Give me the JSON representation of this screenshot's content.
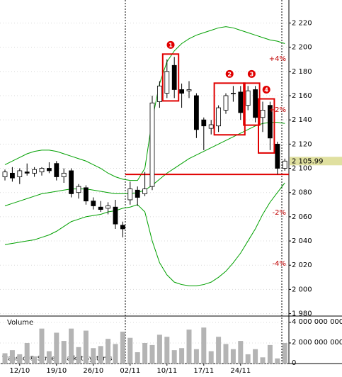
{
  "chart_data": {
    "type": "candlestick",
    "categories": [
      null,
      null,
      "12/10",
      null,
      null,
      null,
      null,
      "19/10",
      null,
      null,
      null,
      null,
      "26/10",
      null,
      null,
      null,
      null,
      "02/11",
      null,
      null,
      null,
      null,
      "10/11",
      null,
      null,
      null,
      null,
      "17/11",
      null,
      null,
      null,
      null,
      "24/11",
      null,
      null,
      null,
      null,
      null,
      null
    ],
    "open": [
      2093,
      2096,
      2093,
      2097,
      2096,
      2097,
      2100,
      2104,
      2093,
      2098,
      2080,
      2084,
      2073,
      2068,
      2067,
      2068,
      2053,
      2074,
      2082,
      2079,
      2085,
      2155,
      2162,
      2185,
      2165,
      2164,
      2160,
      2140,
      2133,
      2135,
      2148,
      2162,
      2163,
      2152,
      2165,
      2142,
      2152,
      2120,
      2100
    ],
    "high": [
      2099,
      2101,
      2100,
      2104,
      2101,
      2101,
      2105,
      2106,
      2100,
      2100,
      2087,
      2086,
      2076,
      2073,
      2072,
      2074,
      2056,
      2089,
      2085,
      2097,
      2160,
      2172,
      2190,
      2192,
      2170,
      2172,
      2162,
      2142,
      2140,
      2152,
      2162,
      2168,
      2168,
      2168,
      2168,
      2155,
      2155,
      2122,
      2108
    ],
    "low": [
      2090,
      2089,
      2087,
      2094,
      2093,
      2094,
      2096,
      2090,
      2088,
      2076,
      2075,
      2070,
      2066,
      2064,
      2062,
      2050,
      2043,
      2070,
      2069,
      2077,
      2082,
      2150,
      2158,
      2158,
      2150,
      2158,
      2125,
      2115,
      2128,
      2130,
      2145,
      2155,
      2140,
      2148,
      2138,
      2130,
      2115,
      2095,
      2098
    ],
    "close": [
      2097,
      2092,
      2098,
      2096,
      2099,
      2100,
      2098,
      2093,
      2096,
      2079,
      2085,
      2073,
      2069,
      2066,
      2069,
      2054,
      2050,
      2083,
      2076,
      2083,
      2154,
      2168,
      2180,
      2165,
      2162,
      2165,
      2132,
      2135,
      2136,
      2150,
      2160,
      2162,
      2146,
      2164,
      2142,
      2148,
      2125,
      2100,
      2105.99
    ],
    "up_color": "#ffffff",
    "down_color": "#000000",
    "bands": {
      "color": "#00a000",
      "upper": [
        2103,
        2106,
        2109,
        2112,
        2114,
        2115,
        2115,
        2114,
        2112,
        2110,
        2108,
        2106,
        2103,
        2100,
        2096,
        2093,
        2091,
        2090,
        2090,
        2100,
        2140,
        2170,
        2188,
        2197,
        2203,
        2207,
        2210,
        2212,
        2214,
        2216,
        2217,
        2216,
        2214,
        2212,
        2210,
        2208,
        2206,
        2205,
        2203
      ],
      "middle": [
        2069,
        2071,
        2073,
        2075,
        2077,
        2079,
        2080,
        2081,
        2082,
        2083,
        2083,
        2083,
        2082,
        2081,
        2080,
        2079,
        2079,
        2079,
        2080,
        2082,
        2086,
        2091,
        2096,
        2100,
        2104,
        2108,
        2111,
        2114,
        2117,
        2120,
        2123,
        2126,
        2129,
        2132,
        2135,
        2137,
        2138,
        2138,
        2137
      ],
      "lower": [
        2037,
        2038,
        2039,
        2040,
        2041,
        2043,
        2045,
        2048,
        2052,
        2056,
        2058,
        2060,
        2061,
        2062,
        2064,
        2065,
        2067,
        2068,
        2070,
        2064,
        2040,
        2022,
        2012,
        2006,
        2004,
        2003,
        2003,
        2004,
        2006,
        2010,
        2015,
        2022,
        2030,
        2040,
        2050,
        2062,
        2072,
        2080,
        2088
      ]
    },
    "support_line": 2095,
    "support_color": "#e00000",
    "last_price": {
      "value": 2105.99,
      "label": "2 105.99"
    },
    "ylim": [
      1978,
      2239
    ],
    "yticks": [
      {
        "value": 1980,
        "label": "1 980"
      },
      {
        "value": 2000,
        "label": "2 000"
      },
      {
        "value": 2020,
        "label": "2 020"
      },
      {
        "value": 2040,
        "label": "2 040"
      },
      {
        "value": 2060,
        "label": "2 060"
      },
      {
        "value": 2080,
        "label": "2 080"
      },
      {
        "value": 2100,
        "label": "2 100"
      },
      {
        "value": 2120,
        "label": "2 120"
      },
      {
        "value": 2140,
        "label": "2 140"
      },
      {
        "value": 2160,
        "label": "2 160"
      },
      {
        "value": 2180,
        "label": "2 180"
      },
      {
        "value": 2200,
        "label": "2 200"
      },
      {
        "value": 2220,
        "label": "2 220"
      }
    ],
    "grid": true,
    "band_labels": [
      "+4%",
      "+2%",
      "-2%",
      "-4%"
    ],
    "pattern_labels": [
      "1",
      "2",
      "3",
      "4"
    ],
    "volume": {
      "title": "Volume",
      "color": "#b4b4b4",
      "values": [
        1000000000,
        1300000000,
        900000000,
        2000000000,
        700000000,
        3400000000,
        1200000000,
        3000000000,
        2200000000,
        3400000000,
        1600000000,
        3200000000,
        1500000000,
        1700000000,
        2400000000,
        1900000000,
        3100000000,
        2500000000,
        1100000000,
        2000000000,
        1800000000,
        2800000000,
        2600000000,
        1300000000,
        1500000000,
        3300000000,
        1400000000,
        3500000000,
        1200000000,
        2600000000,
        1900000000,
        1400000000,
        2200000000,
        900000000,
        1400000000,
        600000000,
        1800000000,
        500000000,
        2000000000
      ],
      "ylim": [
        0,
        4480000000
      ],
      "yticks": [
        0,
        {
          "value": 2000000000,
          "label": "2 000 000 000"
        },
        {
          "value": 4000000000,
          "label": "4 000 000 000"
        }
      ]
    },
    "footer": "Transaq ® Screen Market Systems"
  }
}
